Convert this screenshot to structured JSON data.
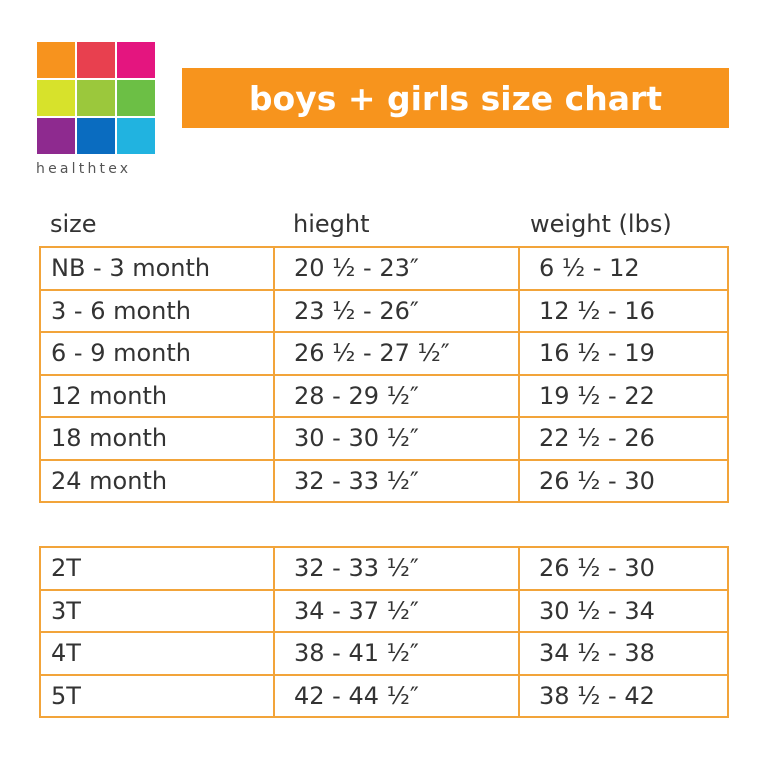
{
  "header": {
    "brand": "healthtex",
    "title": "boys + girls size chart"
  },
  "table": {
    "columns": [
      "size",
      "hieght",
      "weight (lbs)"
    ],
    "groups": [
      {
        "rows": [
          [
            "NB - 3 month",
            "20 ½ - 23″",
            "6 ½ - 12"
          ],
          [
            "3 - 6 month",
            "23 ½ - 26″",
            "12 ½ - 16"
          ],
          [
            "6 - 9 month",
            "26 ½ - 27 ½″",
            "16 ½ - 19"
          ],
          [
            "12 month",
            "28 - 29 ½″",
            "19 ½ - 22"
          ],
          [
            "18 month",
            "30 - 30 ½″",
            "22 ½ - 26"
          ],
          [
            "24 month",
            "32 - 33 ½″",
            "26 ½ - 30"
          ]
        ]
      },
      {
        "rows": [
          [
            "2T",
            "32 - 33 ½″",
            "26 ½ - 30"
          ],
          [
            "3T",
            "34 - 37 ½″",
            "30 ½ - 34"
          ],
          [
            "4T",
            "38 - 41 ½″",
            "34 ½ - 38"
          ],
          [
            "5T",
            "42 - 44 ½″",
            "38 ½ - 42"
          ]
        ]
      }
    ]
  }
}
